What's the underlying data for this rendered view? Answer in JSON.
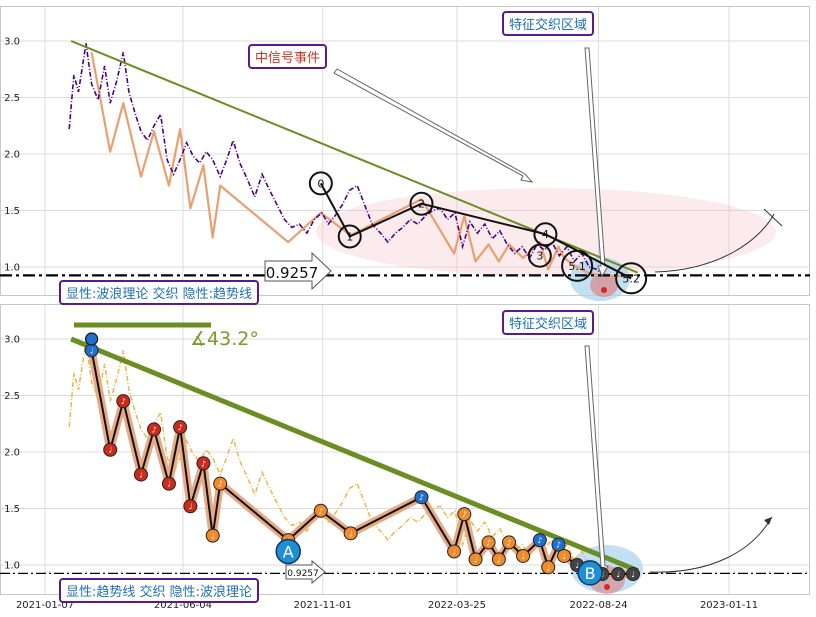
{
  "panels": [
    {
      "badge_region": "特征交织区域",
      "badge_event": "中信号事件",
      "badge_legend": "显性:波浪理论 交织 隐性:趋势线",
      "level_label": "0.9257",
      "wave_labels": [
        "0",
        "1",
        "2",
        "3",
        "4",
        "5.1",
        "5.2"
      ]
    },
    {
      "badge_region": "特征交织区域",
      "badge_legend": "显性:趋势线 交织 隐性:波浪理论",
      "level_label": "0.9257",
      "angle_label": "∡43.2°",
      "point_labels": [
        "A",
        "B"
      ]
    }
  ],
  "chart_data": {
    "type": "line",
    "x_ticks": [
      "2021-01-07",
      "2021-06-04",
      "2021-11-01",
      "2022-03-25",
      "2022-08-24",
      "2023-01-11"
    ],
    "y_ticks": [
      "1.0",
      "1.5",
      "2.0",
      "2.5",
      "3.0"
    ],
    "ylim": [
      0.77,
      3.3
    ],
    "horizontal_level": 0.9257,
    "colors": {
      "price_top": "#4b0082",
      "price_bottom": "#e8b84a",
      "trend": "#6b8e23",
      "wave": "#d2691e",
      "level": "#000000"
    },
    "series": [
      {
        "x": [
          "2021-02-02",
          "2021-02-07",
          "2021-02-12",
          "2021-02-20",
          "2021-02-26",
          "2021-03-05",
          "2021-03-12",
          "2021-03-18",
          "2021-03-25",
          "2021-04-01",
          "2021-04-07",
          "2021-04-14",
          "2021-04-20",
          "2021-04-27",
          "2021-05-04",
          "2021-05-11",
          "2021-05-18",
          "2021-05-25",
          "2021-06-01",
          "2021-06-08",
          "2021-06-15",
          "2021-06-22",
          "2021-06-29",
          "2021-07-06",
          "2021-07-14",
          "2021-07-21",
          "2021-07-28",
          "2021-08-04",
          "2021-08-12",
          "2021-08-20",
          "2021-08-28",
          "2021-09-05",
          "2021-09-13",
          "2021-09-21",
          "2021-09-29",
          "2021-10-07",
          "2021-10-15",
          "2021-10-23",
          "2021-10-31",
          "2021-11-07",
          "2021-11-14",
          "2021-11-22",
          "2021-11-30",
          "2021-12-08",
          "2021-12-16",
          "2021-12-24",
          "2022-01-02",
          "2022-01-10",
          "2022-01-18",
          "2022-01-26",
          "2022-02-03",
          "2022-02-11",
          "2022-02-19",
          "2022-02-27",
          "2022-03-07",
          "2022-03-15",
          "2022-03-23",
          "2022-03-31",
          "2022-04-08",
          "2022-04-16",
          "2022-04-24",
          "2022-05-02",
          "2022-05-10",
          "2022-05-18",
          "2022-05-26",
          "2022-06-03",
          "2022-06-11",
          "2022-06-19",
          "2022-06-27",
          "2022-07-05",
          "2022-07-13",
          "2022-07-21",
          "2022-07-29",
          "2022-08-06",
          "2022-08-14",
          "2022-08-22",
          "2022-08-30"
        ],
        "values": [
          2.22,
          2.7,
          2.55,
          2.98,
          2.62,
          2.48,
          2.78,
          2.45,
          2.65,
          2.9,
          2.55,
          2.35,
          2.2,
          2.12,
          2.25,
          2.35,
          1.95,
          1.82,
          1.95,
          2.1,
          1.98,
          1.92,
          2.02,
          1.95,
          1.8,
          1.95,
          2.12,
          1.92,
          1.78,
          1.62,
          1.82,
          1.68,
          1.55,
          1.42,
          1.35,
          1.38,
          1.3,
          1.42,
          1.48,
          1.38,
          1.45,
          1.55,
          1.68,
          1.72,
          1.55,
          1.38,
          1.3,
          1.22,
          1.3,
          1.35,
          1.42,
          1.38,
          1.45,
          1.5,
          1.52,
          1.42,
          1.48,
          1.18,
          1.4,
          1.3,
          1.38,
          1.25,
          1.32,
          1.2,
          1.12,
          1.18,
          1.08,
          1.2,
          1.15,
          1.22,
          1.1,
          1.18,
          1.05,
          1.12,
          1.0,
          0.98,
          0.92
        ]
      }
    ],
    "trend_line": {
      "x": [
        "2021-02-04",
        "2022-10-05"
      ],
      "values": [
        3.0,
        0.95
      ]
    },
    "wave_path": {
      "x": [
        "2021-02-26",
        "2021-03-18",
        "2021-04-01",
        "2021-04-20",
        "2021-05-04",
        "2021-05-20",
        "2021-06-01",
        "2021-06-12",
        "2021-06-26",
        "2021-07-06",
        "2021-07-14",
        "2021-09-25",
        "2021-10-30",
        "2021-12-01",
        "2022-02-15",
        "2022-03-22",
        "2022-04-02",
        "2022-04-14",
        "2022-04-28",
        "2022-05-09",
        "2022-05-20",
        "2022-06-04",
        "2022-06-22",
        "2022-07-01",
        "2022-07-12",
        "2022-07-18",
        "2022-08-01",
        "2022-08-12",
        "2022-08-28",
        "2022-09-14",
        "2022-09-30"
      ],
      "values": [
        2.9,
        2.02,
        2.45,
        1.8,
        2.2,
        1.72,
        2.22,
        1.52,
        1.9,
        1.26,
        1.72,
        1.22,
        1.48,
        1.28,
        1.6,
        1.12,
        1.45,
        1.05,
        1.2,
        1.05,
        1.2,
        1.08,
        1.22,
        0.98,
        1.18,
        1.08,
        1.0,
        0.95,
        0.92,
        0.92,
        0.92
      ]
    },
    "top_wave_points": {
      "labels": [
        "0",
        "1",
        "2",
        "3",
        "4",
        "5.1",
        "5.2"
      ],
      "x": [
        "2021-10-30",
        "2021-11-30",
        "2022-02-15",
        "2022-06-22",
        "2022-06-28",
        "2022-08-01",
        "2022-09-28"
      ],
      "values": [
        1.74,
        1.27,
        1.56,
        1.1,
        1.29,
        1.01,
        0.9
      ]
    },
    "bottom_points": {
      "labels": [
        "A",
        "B"
      ],
      "x": [
        "2021-09-25",
        "2022-08-15"
      ],
      "values": [
        1.12,
        0.93
      ]
    }
  }
}
